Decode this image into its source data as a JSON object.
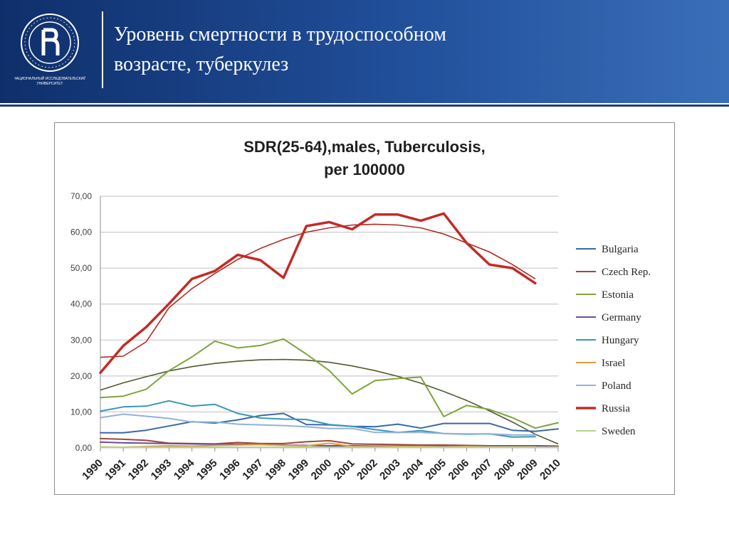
{
  "header": {
    "title_line1": "Уровень смертности в трудоспособном",
    "title_line2": "возрасте,  туберкулез",
    "logo_caption_line1": "НАЦИОНАЛЬНЫЙ ИССЛЕДОВАТЕЛЬСКИЙ",
    "logo_caption_line2": "УНИВЕРСИТЕТ"
  },
  "colors": {
    "header_dark": "#0f2f6b",
    "header_light": "#3a6fb8"
  },
  "chart_data": {
    "type": "line",
    "title_line1": "SDR(25-64),males, Tuberculosis,",
    "title_line2": "per 100000",
    "xlabel": "",
    "ylabel": "",
    "ylim": [
      0,
      70
    ],
    "yticks": [
      "0,00",
      "10,00",
      "20,00",
      "30,00",
      "40,00",
      "50,00",
      "60,00",
      "70,00"
    ],
    "grid": true,
    "legend_position": "right",
    "x": [
      "1990",
      "1991",
      "1992",
      "1993",
      "1994",
      "1995",
      "1996",
      "1997",
      "1998",
      "1999",
      "2000",
      "2001",
      "2002",
      "2003",
      "2004",
      "2005",
      "2006",
      "2007",
      "2008",
      "2009",
      "2010"
    ],
    "series": [
      {
        "name": "Bulgaria",
        "color": "#3a68a8",
        "width": 2,
        "values": [
          4.2,
          4.2,
          4.9,
          6.1,
          7.3,
          6.9,
          7.8,
          9.0,
          9.6,
          6.5,
          6.4,
          6.0,
          5.9,
          6.6,
          5.5,
          6.8,
          6.8,
          6.8,
          4.9,
          4.6,
          5.3
        ]
      },
      {
        "name": "Czech Rep.",
        "color": "#a0463f",
        "width": 2,
        "values": [
          2.6,
          2.4,
          2.1,
          1.3,
          1.2,
          1.1,
          1.5,
          1.2,
          1.2,
          1.7,
          2.0,
          1.1,
          1.0,
          0.9,
          0.8,
          0.8,
          0.7,
          0.6,
          0.6,
          0.6,
          0.5
        ]
      },
      {
        "name": "Estonia",
        "color": "#7ea43a",
        "width": 2,
        "values": [
          14.0,
          14.4,
          16.3,
          21.5,
          25.3,
          29.7,
          27.8,
          28.5,
          30.3,
          26.1,
          21.5,
          15.0,
          18.7,
          19.3,
          19.7,
          8.7,
          11.8,
          10.7,
          8.4,
          5.5,
          7.0
        ]
      },
      {
        "name": "Germany",
        "color": "#6a4d96",
        "width": 2,
        "values": [
          1.6,
          1.4,
          1.3,
          1.2,
          1.1,
          1.0,
          1.0,
          0.9,
          0.8,
          0.7,
          0.6,
          0.6,
          0.5,
          0.5,
          0.5,
          0.5,
          0.4,
          0.4,
          0.4,
          0.4,
          0.3
        ]
      },
      {
        "name": "Hungary",
        "color": "#3a96b5",
        "width": 2,
        "values": [
          10.2,
          11.4,
          11.6,
          13.1,
          11.6,
          12.1,
          9.6,
          8.3,
          8.0,
          7.9,
          6.5,
          6.0,
          5.1,
          4.3,
          4.8,
          4.0,
          3.8,
          3.9,
          3.0,
          3.1,
          null
        ]
      },
      {
        "name": "Israel",
        "color": "#e59a3c",
        "width": 2,
        "values": [
          0.3,
          0.2,
          0.4,
          0.6,
          0.5,
          0.7,
          0.8,
          0.9,
          0.7,
          0.6,
          1.3,
          0.4,
          0.3,
          0.4,
          0.4,
          0.3,
          0.4,
          0.3,
          0.3,
          0.3,
          null
        ]
      },
      {
        "name": "Poland",
        "color": "#92b1d8",
        "width": 2,
        "values": [
          8.4,
          9.4,
          8.8,
          8.2,
          7.2,
          7.2,
          6.6,
          6.4,
          6.2,
          5.9,
          5.4,
          5.4,
          4.3,
          4.3,
          4.3,
          4.0,
          3.9,
          3.9,
          3.6,
          3.6,
          null
        ]
      },
      {
        "name": "Russia",
        "color": "#c32b26",
        "width": 3.5,
        "values": [
          20.9,
          28.4,
          33.6,
          40.1,
          47.0,
          49.2,
          53.7,
          52.2,
          47.3,
          61.7,
          62.8,
          60.8,
          64.9,
          64.9,
          63.2,
          65.2,
          57.0,
          51.0,
          50.0,
          45.8,
          null
        ]
      },
      {
        "name": "Sweden",
        "color": "#b3d48a",
        "width": 2,
        "values": [
          0.2,
          0.2,
          0.2,
          0.2,
          0.2,
          0.2,
          0.2,
          0.2,
          0.2,
          0.2,
          0.2,
          0.2,
          0.2,
          0.2,
          0.2,
          0.2,
          0.2,
          0.2,
          0.2,
          0.2,
          0.2
        ]
      }
    ],
    "trendlines": [
      {
        "of": "Russia",
        "color": "#b02a26",
        "width": 1.6,
        "values": [
          25.2,
          25.5,
          29.5,
          39.0,
          44.3,
          48.5,
          52.4,
          55.5,
          58.0,
          60.0,
          61.2,
          62.0,
          62.2,
          62.0,
          61.2,
          59.5,
          57.0,
          54.5,
          51.0,
          47.0,
          null
        ]
      },
      {
        "of": "Estonia",
        "color": "#4f5a2e",
        "width": 1.6,
        "values": [
          16.1,
          18.1,
          19.8,
          21.4,
          22.6,
          23.5,
          24.1,
          24.5,
          24.6,
          24.4,
          23.8,
          22.8,
          21.5,
          19.9,
          18.0,
          15.7,
          13.2,
          10.3,
          7.2,
          3.8,
          1.1
        ]
      }
    ]
  }
}
